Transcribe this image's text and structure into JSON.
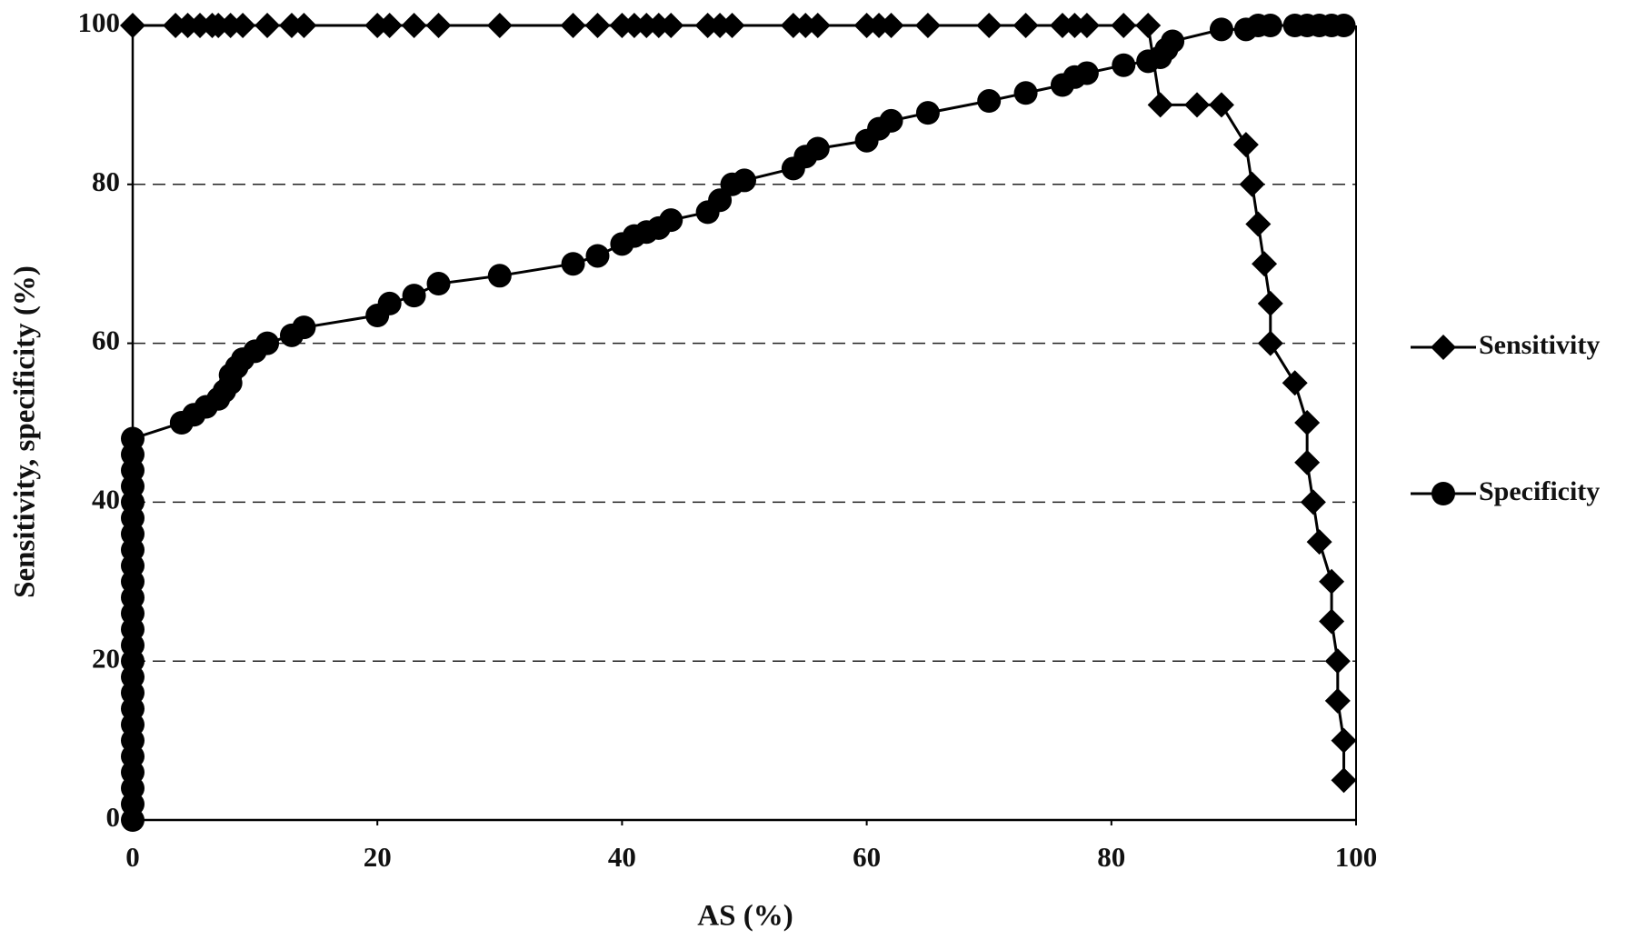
{
  "chart_data": {
    "type": "line",
    "x_label": "AS (%)",
    "y_label": "Sensitivity, specificity (%)",
    "xlim": [
      0,
      100
    ],
    "ylim": [
      0,
      100
    ],
    "xticks": [
      0,
      20,
      40,
      60,
      80,
      100
    ],
    "yticks": [
      0,
      20,
      40,
      60,
      80,
      100
    ],
    "grid": true,
    "legend": "right",
    "series": [
      {
        "name": "Sensitivity",
        "color": "#000000",
        "marker": "diamond",
        "x": [
          0,
          3.5,
          4.5,
          5.5,
          6.5,
          7,
          8,
          9,
          11,
          13,
          14,
          20,
          21,
          23,
          25,
          30,
          36,
          38,
          40,
          41,
          42,
          43,
          44,
          47,
          48,
          49,
          54,
          55,
          56,
          60,
          61,
          62,
          65,
          70,
          73,
          76,
          77,
          78,
          81,
          83,
          84,
          87,
          89,
          91,
          91.5,
          92,
          92.5,
          93,
          93,
          95,
          96,
          96,
          96.5,
          97,
          98,
          98,
          98.5,
          98.5,
          99,
          99
        ],
        "values": [
          100,
          100,
          100,
          100,
          100,
          100,
          100,
          100,
          100,
          100,
          100,
          100,
          100,
          100,
          100,
          100,
          100,
          100,
          100,
          100,
          100,
          100,
          100,
          100,
          100,
          100,
          100,
          100,
          100,
          100,
          100,
          100,
          100,
          100,
          100,
          100,
          100,
          100,
          100,
          100,
          90,
          90,
          90,
          85,
          80,
          75,
          70,
          65,
          60,
          55,
          50,
          45,
          40,
          35,
          30,
          25,
          20,
          15,
          10,
          5
        ]
      },
      {
        "name": "Specificity",
        "color": "#000000",
        "marker": "circle",
        "x": [
          0,
          0,
          0,
          0,
          0,
          0,
          0,
          0,
          0,
          0,
          0,
          0,
          0,
          0,
          0,
          0,
          0,
          0,
          0,
          0,
          0,
          0,
          0,
          0,
          0,
          4,
          5,
          6,
          7,
          7.5,
          8,
          8,
          8.5,
          9,
          10,
          11,
          13,
          14,
          20,
          21,
          23,
          25,
          30,
          36,
          38,
          40,
          41,
          42,
          43,
          44,
          47,
          48,
          49,
          50,
          54,
          55,
          56,
          60,
          61,
          62,
          65,
          70,
          73,
          76,
          77,
          78,
          81,
          83,
          84,
          84.5,
          85,
          89,
          91,
          92,
          93,
          95,
          96,
          97,
          98,
          99
        ],
        "values": [
          0,
          2,
          4,
          6,
          8,
          10,
          12,
          14,
          16,
          18,
          20,
          22,
          24,
          26,
          28,
          30,
          32,
          34,
          36,
          38,
          40,
          42,
          44,
          46,
          48,
          50,
          51,
          52,
          53,
          54,
          55,
          56,
          57,
          58,
          59,
          60,
          61,
          62,
          63.5,
          65,
          66,
          67.5,
          68.5,
          70,
          71,
          72.5,
          73.5,
          74,
          74.5,
          75.5,
          76.5,
          78,
          80,
          80.5,
          82,
          83.5,
          84.5,
          85.5,
          87,
          88,
          89,
          90.5,
          91.5,
          92.5,
          93.5,
          94,
          95,
          95.5,
          96,
          97,
          98,
          99.5,
          99.5,
          100,
          100,
          100,
          100,
          100,
          100,
          100
        ]
      }
    ]
  }
}
